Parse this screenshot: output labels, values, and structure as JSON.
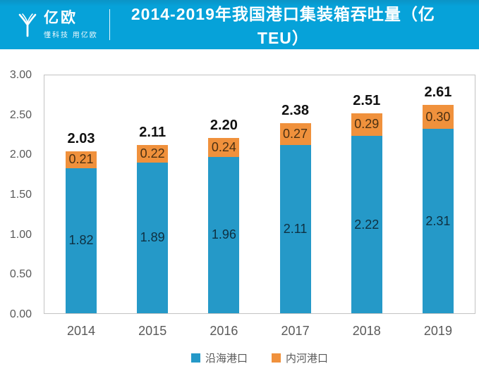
{
  "header": {
    "logo_text": "亿欧",
    "logo_tagline": "懂科技 用亿欧",
    "title": "2014-2019年我国港口集装箱吞吐量（亿TEU）",
    "background_color": "#06a2d9"
  },
  "chart_data": {
    "type": "bar",
    "stacked": true,
    "title": "2014-2019年我国港口集装箱吞吐量（亿TEU）",
    "categories": [
      "2014",
      "2015",
      "2016",
      "2017",
      "2018",
      "2019"
    ],
    "series": [
      {
        "name": "沿海港口",
        "color": "#2599c8",
        "values": [
          1.82,
          1.89,
          1.96,
          2.11,
          2.22,
          2.31
        ]
      },
      {
        "name": "内河港口",
        "color": "#f0913c",
        "values": [
          0.21,
          0.22,
          0.24,
          0.27,
          0.29,
          0.3
        ]
      }
    ],
    "totals": [
      "2.03",
      "2.11",
      "2.20",
      "2.38",
      "2.51",
      "2.61"
    ],
    "xlabel": "",
    "ylabel": "",
    "ylim": [
      0,
      3
    ],
    "yticks": [
      "3.00",
      "2.50",
      "2.00",
      "1.50",
      "1.00",
      "0.50",
      "0.00"
    ],
    "grid": false,
    "legend_position": "bottom"
  }
}
